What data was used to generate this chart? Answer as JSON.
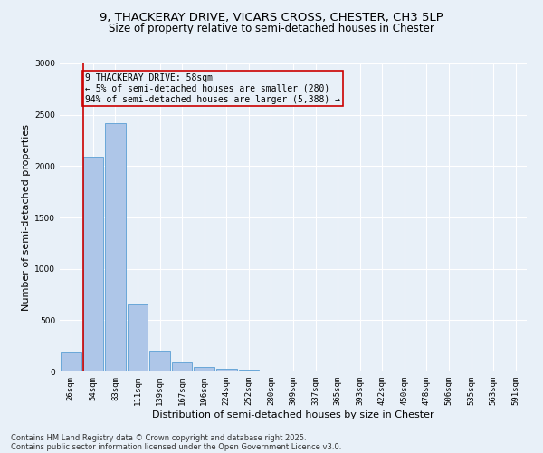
{
  "title_line1": "9, THACKERAY DRIVE, VICARS CROSS, CHESTER, CH3 5LP",
  "title_line2": "Size of property relative to semi-detached houses in Chester",
  "xlabel": "Distribution of semi-detached houses by size in Chester",
  "ylabel": "Number of semi-detached properties",
  "bar_labels": [
    "26sqm",
    "54sqm",
    "83sqm",
    "111sqm",
    "139sqm",
    "167sqm",
    "196sqm",
    "224sqm",
    "252sqm",
    "280sqm",
    "309sqm",
    "337sqm",
    "365sqm",
    "393sqm",
    "422sqm",
    "450sqm",
    "478sqm",
    "506sqm",
    "535sqm",
    "563sqm",
    "591sqm"
  ],
  "bar_values": [
    185,
    2090,
    2420,
    650,
    205,
    90,
    40,
    30,
    20,
    0,
    0,
    0,
    0,
    0,
    0,
    0,
    0,
    0,
    0,
    0,
    0
  ],
  "bar_color": "#aec6e8",
  "bar_edge_color": "#5a9fd4",
  "vline_color": "#cc0000",
  "annotation_text": "9 THACKERAY DRIVE: 58sqm\n← 5% of semi-detached houses are smaller (280)\n94% of semi-detached houses are larger (5,388) →",
  "annotation_box_color": "#cc0000",
  "ylim": [
    0,
    3000
  ],
  "yticks": [
    0,
    500,
    1000,
    1500,
    2000,
    2500,
    3000
  ],
  "background_color": "#e8f0f8",
  "grid_color": "#ffffff",
  "footer_line1": "Contains HM Land Registry data © Crown copyright and database right 2025.",
  "footer_line2": "Contains public sector information licensed under the Open Government Licence v3.0.",
  "title_fontsize": 9.5,
  "subtitle_fontsize": 8.5,
  "axis_label_fontsize": 8,
  "tick_fontsize": 6.5,
  "annotation_fontsize": 7,
  "footer_fontsize": 6
}
